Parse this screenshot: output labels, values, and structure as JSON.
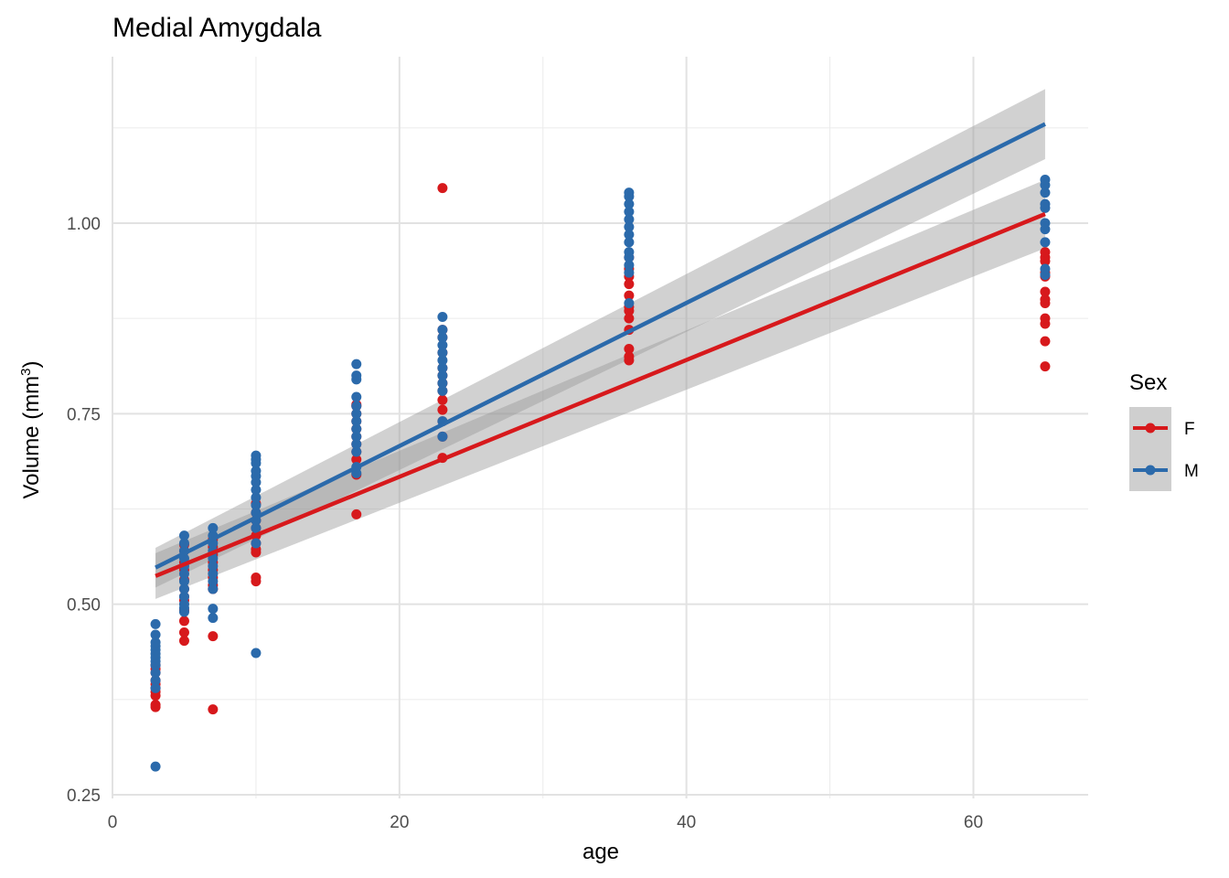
{
  "chart_data": {
    "type": "scatter",
    "title": "Medial Amygdala",
    "xlabel": "age",
    "ylabel_main": "Volume (mm",
    "ylabel_sup": "3",
    "ylabel_end": ")",
    "xlim": [
      0,
      68
    ],
    "ylim": [
      0.25,
      1.2
    ],
    "x_ticks": [
      0,
      20,
      40,
      60
    ],
    "x_tick_labels": [
      "0",
      "20",
      "40",
      "60"
    ],
    "y_ticks": [
      0.25,
      0.5,
      0.75,
      1.0
    ],
    "y_tick_labels": [
      "0.25",
      "0.50",
      "0.75",
      "1.00"
    ],
    "grid": true,
    "legend": {
      "title": "Sex",
      "position": "right"
    },
    "series": [
      {
        "name": "F",
        "color": "#d7191c",
        "points": [
          [
            3,
            0.365
          ],
          [
            3,
            0.368
          ],
          [
            3,
            0.38
          ],
          [
            3,
            0.385
          ],
          [
            3,
            0.39
          ],
          [
            3,
            0.395
          ],
          [
            3,
            0.4
          ],
          [
            3,
            0.41
          ],
          [
            3,
            0.415
          ],
          [
            3,
            0.42
          ],
          [
            5,
            0.452
          ],
          [
            5,
            0.463
          ],
          [
            5,
            0.478
          ],
          [
            5,
            0.492
          ],
          [
            5,
            0.505
          ],
          [
            5,
            0.51
          ],
          [
            5,
            0.52
          ],
          [
            5,
            0.532
          ],
          [
            5,
            0.545
          ],
          [
            5,
            0.555
          ],
          [
            5,
            0.57
          ],
          [
            5,
            0.578
          ],
          [
            7,
            0.362
          ],
          [
            7,
            0.458
          ],
          [
            7,
            0.52
          ],
          [
            7,
            0.525
          ],
          [
            7,
            0.535
          ],
          [
            7,
            0.545
          ],
          [
            7,
            0.555
          ],
          [
            7,
            0.565
          ],
          [
            7,
            0.575
          ],
          [
            7,
            0.585
          ],
          [
            10,
            0.53
          ],
          [
            10,
            0.535
          ],
          [
            10,
            0.568
          ],
          [
            10,
            0.572
          ],
          [
            10,
            0.58
          ],
          [
            10,
            0.59
          ],
          [
            10,
            0.6
          ],
          [
            10,
            0.61
          ],
          [
            10,
            0.62
          ],
          [
            10,
            0.632
          ],
          [
            17,
            0.618
          ],
          [
            17,
            0.67
          ],
          [
            17,
            0.69
          ],
          [
            17,
            0.7
          ],
          [
            17,
            0.71
          ],
          [
            17,
            0.72
          ],
          [
            17,
            0.73
          ],
          [
            17,
            0.74
          ],
          [
            17,
            0.75
          ],
          [
            17,
            0.76
          ],
          [
            17,
            0.762
          ],
          [
            23,
            0.692
          ],
          [
            23,
            0.72
          ],
          [
            23,
            0.74
          ],
          [
            23,
            0.755
          ],
          [
            23,
            0.768
          ],
          [
            23,
            0.78
          ],
          [
            23,
            0.79
          ],
          [
            23,
            0.8
          ],
          [
            23,
            0.81
          ],
          [
            23,
            0.83
          ],
          [
            23,
            0.85
          ],
          [
            23,
            0.86
          ],
          [
            23,
            1.046
          ],
          [
            36,
            0.82
          ],
          [
            36,
            0.825
          ],
          [
            36,
            0.835
          ],
          [
            36,
            0.86
          ],
          [
            36,
            0.875
          ],
          [
            36,
            0.885
          ],
          [
            36,
            0.89
          ],
          [
            36,
            0.905
          ],
          [
            36,
            0.92
          ],
          [
            36,
            0.93
          ],
          [
            36,
            0.94
          ],
          [
            36,
            0.955
          ],
          [
            65,
            0.812
          ],
          [
            65,
            0.845
          ],
          [
            65,
            0.868
          ],
          [
            65,
            0.875
          ],
          [
            65,
            0.895
          ],
          [
            65,
            0.9
          ],
          [
            65,
            0.91
          ],
          [
            65,
            0.93
          ],
          [
            65,
            0.935
          ],
          [
            65,
            0.95
          ],
          [
            65,
            0.955
          ],
          [
            65,
            0.962
          ]
        ],
        "fit": {
          "x": [
            3,
            65
          ],
          "y": [
            0.537,
            1.012
          ],
          "ci_low": [
            0.507,
            0.967
          ],
          "ci_high": [
            0.567,
            1.057
          ]
        }
      },
      {
        "name": "M",
        "color": "#2b6aab",
        "points": [
          [
            3,
            0.287
          ],
          [
            3,
            0.39
          ],
          [
            3,
            0.4
          ],
          [
            3,
            0.41
          ],
          [
            3,
            0.42
          ],
          [
            3,
            0.425
          ],
          [
            3,
            0.43
          ],
          [
            3,
            0.435
          ],
          [
            3,
            0.44
          ],
          [
            3,
            0.445
          ],
          [
            3,
            0.45
          ],
          [
            3,
            0.46
          ],
          [
            3,
            0.474
          ],
          [
            5,
            0.49
          ],
          [
            5,
            0.495
          ],
          [
            5,
            0.5
          ],
          [
            5,
            0.51
          ],
          [
            5,
            0.52
          ],
          [
            5,
            0.53
          ],
          [
            5,
            0.54
          ],
          [
            5,
            0.55
          ],
          [
            5,
            0.56
          ],
          [
            5,
            0.57
          ],
          [
            5,
            0.58
          ],
          [
            5,
            0.59
          ],
          [
            7,
            0.482
          ],
          [
            7,
            0.494
          ],
          [
            7,
            0.52
          ],
          [
            7,
            0.53
          ],
          [
            7,
            0.54
          ],
          [
            7,
            0.55
          ],
          [
            7,
            0.56
          ],
          [
            7,
            0.57
          ],
          [
            7,
            0.58
          ],
          [
            7,
            0.59
          ],
          [
            7,
            0.6
          ],
          [
            10,
            0.436
          ],
          [
            10,
            0.58
          ],
          [
            10,
            0.6
          ],
          [
            10,
            0.61
          ],
          [
            10,
            0.62
          ],
          [
            10,
            0.63
          ],
          [
            10,
            0.64
          ],
          [
            10,
            0.65
          ],
          [
            10,
            0.66
          ],
          [
            10,
            0.668
          ],
          [
            10,
            0.675
          ],
          [
            10,
            0.685
          ],
          [
            10,
            0.69
          ],
          [
            10,
            0.695
          ],
          [
            17,
            0.672
          ],
          [
            17,
            0.68
          ],
          [
            17,
            0.7
          ],
          [
            17,
            0.71
          ],
          [
            17,
            0.72
          ],
          [
            17,
            0.73
          ],
          [
            17,
            0.74
          ],
          [
            17,
            0.75
          ],
          [
            17,
            0.76
          ],
          [
            17,
            0.772
          ],
          [
            17,
            0.795
          ],
          [
            17,
            0.8
          ],
          [
            17,
            0.815
          ],
          [
            23,
            0.72
          ],
          [
            23,
            0.74
          ],
          [
            23,
            0.78
          ],
          [
            23,
            0.79
          ],
          [
            23,
            0.8
          ],
          [
            23,
            0.81
          ],
          [
            23,
            0.82
          ],
          [
            23,
            0.83
          ],
          [
            23,
            0.84
          ],
          [
            23,
            0.85
          ],
          [
            23,
            0.86
          ],
          [
            23,
            0.877
          ],
          [
            36,
            0.895
          ],
          [
            36,
            0.935
          ],
          [
            36,
            0.945
          ],
          [
            36,
            0.955
          ],
          [
            36,
            0.962
          ],
          [
            36,
            0.975
          ],
          [
            36,
            0.985
          ],
          [
            36,
            0.995
          ],
          [
            36,
            1.005
          ],
          [
            36,
            1.015
          ],
          [
            36,
            1.025
          ],
          [
            36,
            1.035
          ],
          [
            36,
            1.04
          ],
          [
            65,
            0.932
          ],
          [
            65,
            0.94
          ],
          [
            65,
            0.975
          ],
          [
            65,
            0.992
          ],
          [
            65,
            1.0
          ],
          [
            65,
            1.02
          ],
          [
            65,
            1.025
          ],
          [
            65,
            1.04
          ],
          [
            65,
            1.05
          ],
          [
            65,
            1.057
          ]
        ],
        "fit": {
          "x": [
            3,
            65
          ],
          "y": [
            0.548,
            1.13
          ],
          "ci_low": [
            0.522,
            1.084
          ],
          "ci_high": [
            0.574,
            1.176
          ]
        }
      }
    ]
  }
}
